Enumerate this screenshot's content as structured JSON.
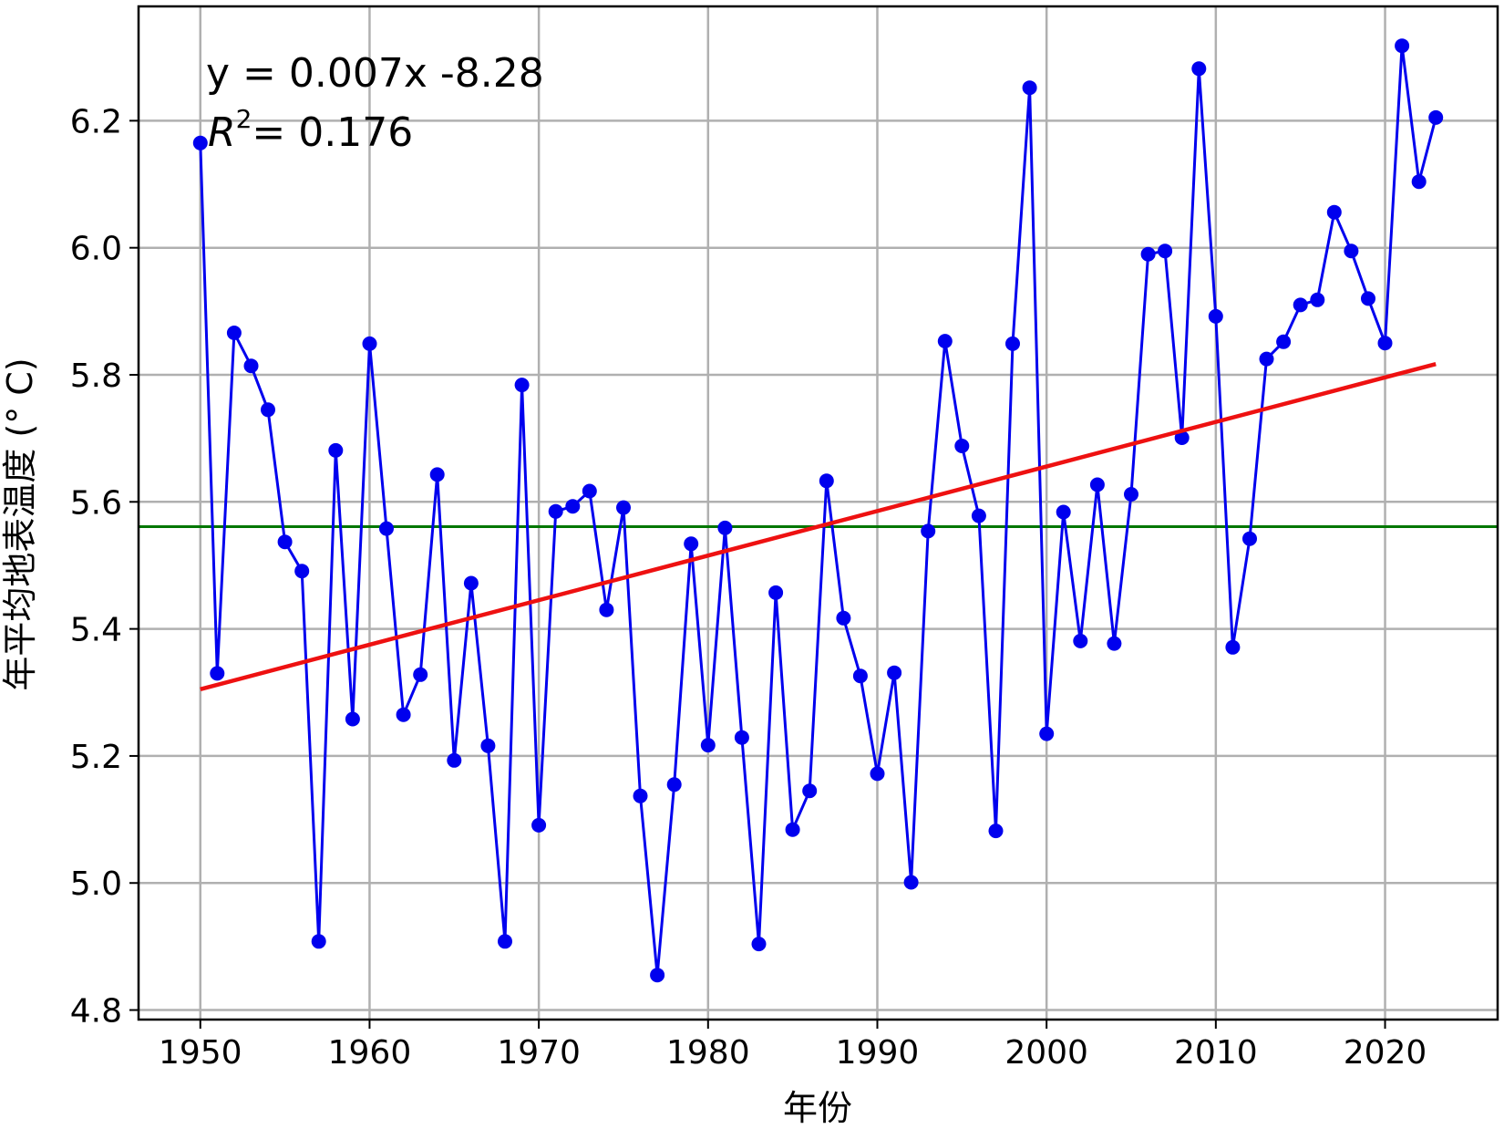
{
  "chart_data": {
    "type": "line",
    "xlabel": "年份",
    "ylabel": "年平均地表温度 (° C)",
    "xlim": [
      1946.35,
      2026.65
    ],
    "ylim": [
      4.785,
      6.38
    ],
    "xticks": [
      1950,
      1960,
      1970,
      1980,
      1990,
      2000,
      2010,
      2020
    ],
    "yticks": [
      4.8,
      5.0,
      5.2,
      5.4,
      5.6,
      5.8,
      6.0,
      6.2
    ],
    "ytick_labels": [
      "4.8",
      "5.0",
      "5.2",
      "5.4",
      "5.6",
      "5.8",
      "6.0",
      "6.2"
    ],
    "grid": true,
    "annotations": {
      "equation": "y = 0.007x -8.28",
      "r2_symbol": "R",
      "r2_exponent": "2",
      "r2_value": "= 0.176"
    },
    "colors": {
      "data": "#0000ee",
      "trend": "#ee1111",
      "mean": "#007700",
      "grid": "#b0b0b0"
    },
    "series": [
      {
        "kind": "data",
        "x": [
          1950,
          1951,
          1952,
          1953,
          1954,
          1955,
          1956,
          1957,
          1958,
          1959,
          1960,
          1961,
          1962,
          1963,
          1964,
          1965,
          1966,
          1967,
          1968,
          1969,
          1970,
          1971,
          1972,
          1973,
          1974,
          1975,
          1976,
          1977,
          1978,
          1979,
          1980,
          1981,
          1982,
          1983,
          1984,
          1985,
          1986,
          1987,
          1988,
          1989,
          1990,
          1991,
          1992,
          1993,
          1994,
          1995,
          1996,
          1997,
          1998,
          1999,
          2000,
          2001,
          2002,
          2003,
          2004,
          2005,
          2006,
          2007,
          2008,
          2009,
          2010,
          2011,
          2012,
          2013,
          2014,
          2015,
          2016,
          2017,
          2018,
          2019,
          2020,
          2021,
          2022,
          2023
        ],
        "y": [
          6.165,
          5.33,
          5.866,
          5.814,
          5.745,
          5.537,
          5.491,
          4.908,
          5.681,
          5.258,
          5.849,
          5.558,
          5.265,
          5.328,
          5.643,
          5.193,
          5.472,
          5.216,
          4.908,
          5.784,
          5.091,
          5.585,
          5.593,
          5.617,
          5.43,
          5.591,
          5.137,
          4.855,
          5.155,
          5.534,
          5.217,
          5.559,
          5.229,
          4.904,
          5.457,
          5.084,
          5.145,
          5.633,
          5.417,
          5.326,
          5.172,
          5.331,
          5.001,
          5.554,
          5.853,
          5.688,
          5.578,
          5.082,
          5.849,
          6.252,
          5.235,
          5.584,
          5.381,
          5.627,
          5.377,
          5.612,
          5.99,
          5.995,
          5.701,
          6.282,
          5.892,
          5.371,
          5.542,
          5.825,
          5.852,
          5.91,
          5.918,
          6.056,
          5.995,
          5.92,
          5.85,
          6.318,
          6.104,
          6.205
        ]
      },
      {
        "kind": "trend",
        "x": [
          1950,
          2023
        ],
        "y": [
          5.305,
          5.817
        ]
      },
      {
        "kind": "mean",
        "y": 5.561
      }
    ]
  }
}
